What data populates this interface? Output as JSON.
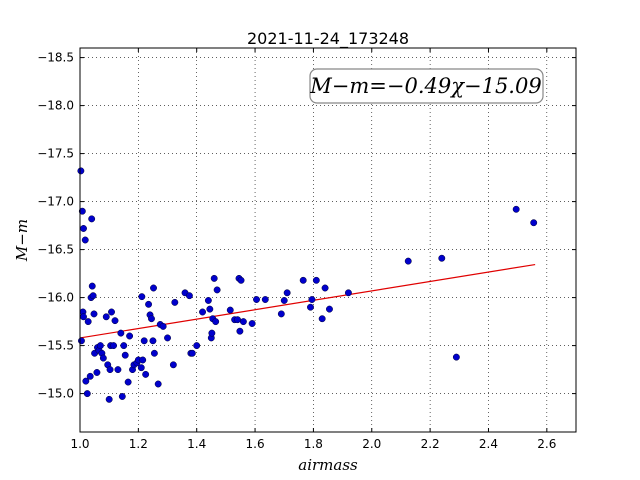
{
  "chart_data": {
    "type": "scatter",
    "title": "2021-11-24_173248",
    "xlabel": "airmass",
    "ylabel": "M−m",
    "xlim": [
      1.0,
      2.7
    ],
    "ylim": [
      -18.6,
      -14.6
    ],
    "y_inverted": true,
    "x_ticks": [
      "1.0",
      "1.2",
      "1.4",
      "1.6",
      "1.8",
      "2.0",
      "2.2",
      "2.4",
      "2.6"
    ],
    "y_ticks": [
      "−15.0",
      "−15.5",
      "−16.0",
      "−16.5",
      "−17.0",
      "−17.5",
      "−18.0",
      "−18.5"
    ],
    "grid": true,
    "annotation": "M−m=−0.49χ−15.09",
    "colors": {
      "points": "#0000cc",
      "fit_line": "#e00000"
    },
    "fit_line": {
      "slope": -0.49,
      "intercept": -15.09,
      "x_range": [
        1.0,
        2.56
      ]
    },
    "points": [
      {
        "x": 1.005,
        "y": -15.55
      },
      {
        "x": 1.01,
        "y": -15.85
      },
      {
        "x": 1.012,
        "y": -15.8
      },
      {
        "x": 1.02,
        "y": -15.13
      },
      {
        "x": 1.025,
        "y": -15.0
      },
      {
        "x": 1.028,
        "y": -15.75
      },
      {
        "x": 1.035,
        "y": -15.18
      },
      {
        "x": 1.038,
        "y": -16.0
      },
      {
        "x": 1.042,
        "y": -16.12
      },
      {
        "x": 1.045,
        "y": -16.02
      },
      {
        "x": 1.048,
        "y": -15.83
      },
      {
        "x": 1.05,
        "y": -15.42
      },
      {
        "x": 1.058,
        "y": -15.22
      },
      {
        "x": 1.06,
        "y": -15.48
      },
      {
        "x": 1.065,
        "y": -15.45
      },
      {
        "x": 1.07,
        "y": -15.5
      },
      {
        "x": 1.075,
        "y": -15.42
      },
      {
        "x": 1.08,
        "y": -15.37
      },
      {
        "x": 1.09,
        "y": -15.8
      },
      {
        "x": 1.095,
        "y": -15.3
      },
      {
        "x": 1.1,
        "y": -14.94
      },
      {
        "x": 1.103,
        "y": -15.25
      },
      {
        "x": 1.105,
        "y": -15.5
      },
      {
        "x": 1.108,
        "y": -15.85
      },
      {
        "x": 1.115,
        "y": -15.5
      },
      {
        "x": 1.12,
        "y": -15.76
      },
      {
        "x": 1.13,
        "y": -15.25
      },
      {
        "x": 1.14,
        "y": -15.63
      },
      {
        "x": 1.145,
        "y": -14.97
      },
      {
        "x": 1.15,
        "y": -15.5
      },
      {
        "x": 1.155,
        "y": -15.4
      },
      {
        "x": 1.165,
        "y": -15.12
      },
      {
        "x": 1.17,
        "y": -15.6
      },
      {
        "x": 1.18,
        "y": -15.25
      },
      {
        "x": 1.185,
        "y": -15.3
      },
      {
        "x": 1.195,
        "y": -15.32
      },
      {
        "x": 1.2,
        "y": -15.35
      },
      {
        "x": 1.21,
        "y": -15.27
      },
      {
        "x": 1.212,
        "y": -16.01
      },
      {
        "x": 1.215,
        "y": -15.35
      },
      {
        "x": 1.22,
        "y": -15.55
      },
      {
        "x": 1.225,
        "y": -15.2
      },
      {
        "x": 1.235,
        "y": -15.93
      },
      {
        "x": 1.24,
        "y": -15.82
      },
      {
        "x": 1.245,
        "y": -15.78
      },
      {
        "x": 1.25,
        "y": -15.55
      },
      {
        "x": 1.252,
        "y": -16.1
      },
      {
        "x": 1.255,
        "y": -15.42
      },
      {
        "x": 1.268,
        "y": -15.1
      },
      {
        "x": 1.275,
        "y": -15.72
      },
      {
        "x": 1.285,
        "y": -15.7
      },
      {
        "x": 1.3,
        "y": -15.58
      },
      {
        "x": 1.32,
        "y": -15.3
      },
      {
        "x": 1.325,
        "y": -15.95
      },
      {
        "x": 1.36,
        "y": -16.05
      },
      {
        "x": 1.375,
        "y": -16.02
      },
      {
        "x": 1.38,
        "y": -15.42
      },
      {
        "x": 1.385,
        "y": -15.42
      },
      {
        "x": 1.4,
        "y": -15.5
      },
      {
        "x": 1.42,
        "y": -15.85
      },
      {
        "x": 1.44,
        "y": -15.97
      },
      {
        "x": 1.445,
        "y": -15.88
      },
      {
        "x": 1.45,
        "y": -15.58
      },
      {
        "x": 1.452,
        "y": -15.63
      },
      {
        "x": 1.455,
        "y": -15.78
      },
      {
        "x": 1.46,
        "y": -16.2
      },
      {
        "x": 1.465,
        "y": -15.75
      },
      {
        "x": 1.47,
        "y": -16.08
      },
      {
        "x": 1.515,
        "y": -15.87
      },
      {
        "x": 1.53,
        "y": -15.77
      },
      {
        "x": 1.54,
        "y": -15.77
      },
      {
        "x": 1.545,
        "y": -16.2
      },
      {
        "x": 1.548,
        "y": -15.65
      },
      {
        "x": 1.552,
        "y": -16.18
      },
      {
        "x": 1.56,
        "y": -15.75
      },
      {
        "x": 1.59,
        "y": -15.73
      },
      {
        "x": 1.605,
        "y": -15.98
      },
      {
        "x": 1.635,
        "y": -15.98
      },
      {
        "x": 1.69,
        "y": -15.83
      },
      {
        "x": 1.7,
        "y": -15.97
      },
      {
        "x": 1.71,
        "y": -16.05
      },
      {
        "x": 1.765,
        "y": -16.18
      },
      {
        "x": 1.79,
        "y": -15.9
      },
      {
        "x": 1.795,
        "y": -15.98
      },
      {
        "x": 1.81,
        "y": -16.18
      },
      {
        "x": 1.83,
        "y": -15.78
      },
      {
        "x": 1.84,
        "y": -16.1
      },
      {
        "x": 1.855,
        "y": -15.88
      },
      {
        "x": 1.92,
        "y": -16.05
      },
      {
        "x": 2.125,
        "y": -16.38
      },
      {
        "x": 2.24,
        "y": -16.41
      },
      {
        "x": 2.29,
        "y": -15.38
      },
      {
        "x": 2.495,
        "y": -16.92
      },
      {
        "x": 2.555,
        "y": -16.78
      },
      {
        "x": 1.003,
        "y": -17.32
      },
      {
        "x": 1.008,
        "y": -16.9
      },
      {
        "x": 1.012,
        "y": -16.72
      },
      {
        "x": 1.018,
        "y": -16.6
      },
      {
        "x": 1.04,
        "y": -16.82
      }
    ]
  }
}
